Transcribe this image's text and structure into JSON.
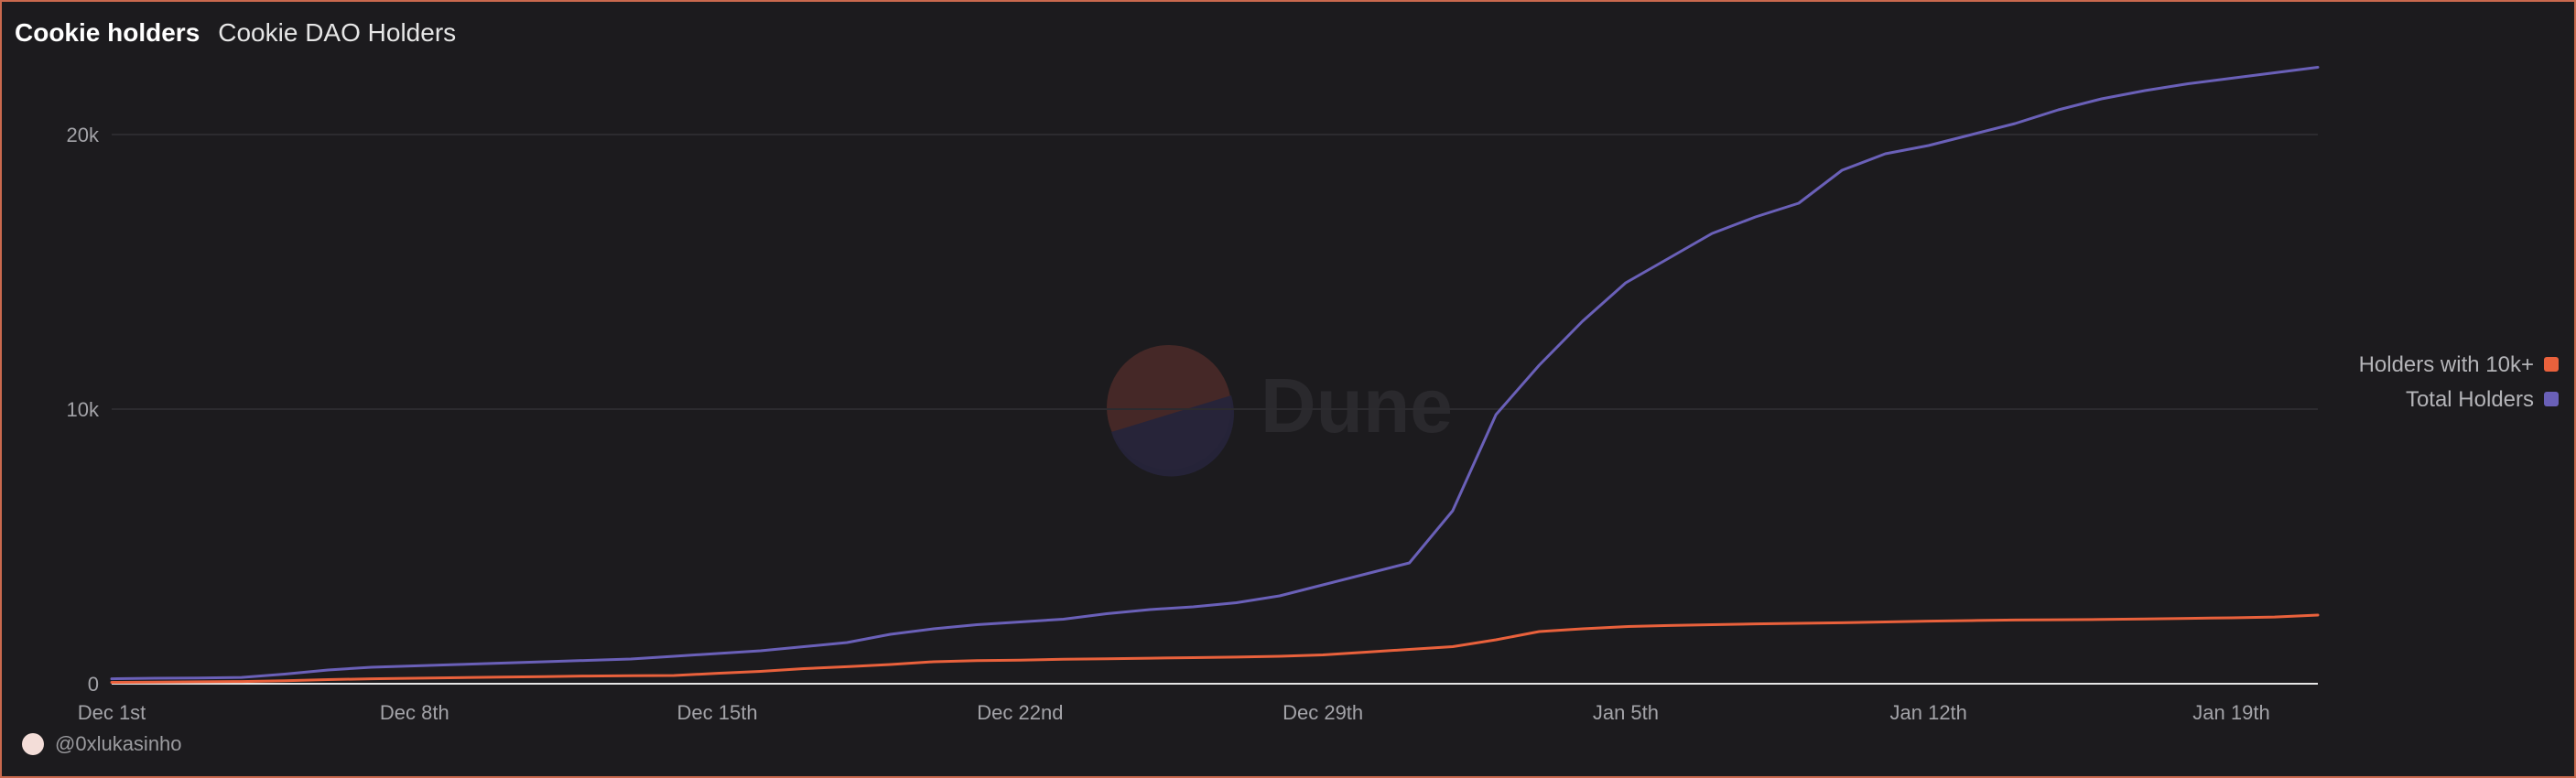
{
  "header": {
    "title": "Cookie holders",
    "subtitle": "Cookie DAO Holders"
  },
  "footer": {
    "author": "@0xlukasinho"
  },
  "watermark": {
    "text": "Dune"
  },
  "colors": {
    "background": "#1c1b1e",
    "grid": "#2c2b2f",
    "tick_text": "#a3a3a8",
    "legend_text": "#b4b4b8",
    "series_orange": "#e9613c",
    "series_purple": "#6a60b8"
  },
  "chart_data": {
    "type": "line",
    "x_start": "Dec 1st",
    "x_labels": [
      "Dec 1st",
      "Dec 8th",
      "Dec 15th",
      "Dec 22nd",
      "Dec 29th",
      "Jan 5th",
      "Jan 12th",
      "Jan 19th"
    ],
    "x_label_days": [
      0,
      7,
      14,
      21,
      28,
      35,
      42,
      49
    ],
    "x_days": [
      0,
      1,
      2,
      3,
      4,
      5,
      6,
      7,
      8,
      9,
      10,
      11,
      12,
      13,
      14,
      15,
      16,
      17,
      18,
      19,
      20,
      21,
      22,
      23,
      24,
      25,
      26,
      27,
      28,
      29,
      30,
      31,
      32,
      33,
      34,
      35,
      36,
      37,
      38,
      39,
      40,
      41,
      42,
      43,
      44,
      45,
      46,
      47,
      48,
      49,
      50,
      51
    ],
    "xlim": [
      0,
      51
    ],
    "y_ticks": [
      0,
      10000,
      20000
    ],
    "y_tick_labels": [
      "0",
      "10k",
      "20k"
    ],
    "ylim": [
      0,
      22500
    ],
    "legend_position": "right",
    "series": [
      {
        "name": "Holders with 10k+",
        "color": "#e9613c",
        "values": [
          50,
          60,
          70,
          80,
          110,
          150,
          180,
          200,
          220,
          240,
          260,
          280,
          290,
          300,
          380,
          450,
          550,
          620,
          700,
          800,
          840,
          860,
          890,
          910,
          930,
          950,
          970,
          1000,
          1050,
          1150,
          1250,
          1350,
          1600,
          1900,
          2000,
          2080,
          2120,
          2150,
          2180,
          2200,
          2220,
          2250,
          2280,
          2300,
          2320,
          2330,
          2340,
          2360,
          2380,
          2400,
          2430,
          2500
        ]
      },
      {
        "name": "Total Holders",
        "color": "#6a60b8",
        "values": [
          180,
          200,
          210,
          230,
          350,
          500,
          600,
          650,
          700,
          750,
          800,
          850,
          900,
          1000,
          1100,
          1200,
          1350,
          1500,
          1800,
          2000,
          2150,
          2250,
          2350,
          2550,
          2700,
          2800,
          2950,
          3200,
          3600,
          4000,
          4400,
          6300,
          9800,
          11600,
          13200,
          14600,
          15500,
          16400,
          17000,
          17500,
          18700,
          19300,
          19600,
          20000,
          20400,
          20900,
          21300,
          21600,
          21850,
          22050,
          22250,
          22450
        ]
      }
    ]
  }
}
